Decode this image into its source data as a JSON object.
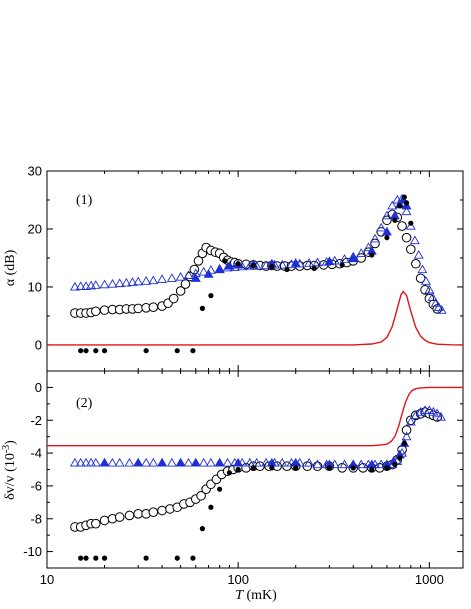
{
  "chart_data": {
    "type": "scatter",
    "xlabel_italic": "T",
    "xlabel_unit": " (mK)",
    "x_scale": "log",
    "xlim": [
      10,
      1500
    ],
    "x_ticks": [
      10,
      100,
      1000
    ],
    "x_tick_labels": [
      "10",
      "100",
      "1000"
    ],
    "colors": {
      "blue_symbols": "#1f2fd6",
      "black_symbols": "#000000",
      "model_line": "#e0141a",
      "axes": "#000000"
    },
    "panels": [
      {
        "panel_label": "(1)",
        "ylabel_greek": "α",
        "ylabel_unit": " (dB)",
        "ylim": [
          -4.5,
          30
        ],
        "y_ticks": [
          0,
          10,
          20,
          30
        ],
        "y_tick_labels": [
          "0",
          "10",
          "20",
          "30"
        ],
        "series": [
          {
            "marker": "open-circle",
            "x": [
              14,
              15,
              16,
              17,
              18,
              20,
              22,
              24,
              26,
              28,
              30,
              33,
              36,
              40,
              43,
              46,
              50,
              53,
              56,
              59,
              62,
              65,
              68,
              72,
              76,
              80,
              84,
              88,
              92,
              96,
              100,
              110,
              120,
              130,
              140,
              150,
              160,
              175,
              190,
              210,
              230,
              250,
              280,
              310,
              340,
              370,
              400,
              440,
              480,
              520,
              560,
              600,
              640,
              680,
              720,
              760,
              800,
              850,
              900,
              950,
              1000,
              1050,
              1100
            ],
            "y": [
              5.5,
              5.5,
              5.5,
              5.6,
              5.8,
              6.0,
              6.1,
              6.1,
              6.2,
              6.2,
              6.3,
              6.4,
              6.5,
              6.7,
              7.2,
              8.0,
              9.3,
              10.5,
              11.8,
              13.0,
              14.5,
              15.8,
              16.8,
              16.3,
              16.0,
              15.8,
              15.1,
              14.6,
              14.3,
              14.2,
              14.0,
              13.9,
              13.8,
              13.7,
              13.6,
              13.7,
              13.6,
              13.6,
              13.6,
              13.6,
              13.7,
              13.7,
              13.8,
              13.9,
              14.0,
              14.2,
              14.5,
              15.0,
              16.0,
              17.5,
              19.5,
              21.5,
              22.5,
              22.0,
              20.5,
              18.5,
              16.5,
              14.0,
              11.5,
              9.5,
              8.0,
              7.0,
              6.2
            ]
          },
          {
            "marker": "open-triangle-blue",
            "x": [
              14,
              15,
              16,
              17,
              18,
              20,
              22,
              24,
              26,
              28,
              30,
              33,
              36,
              40,
              45,
              50,
              55,
              60,
              66,
              72,
              80,
              88,
              96,
              105,
              115,
              125,
              140,
              155,
              170,
              190,
              210,
              235,
              260,
              290,
              320,
              360,
              400,
              440,
              480,
              520,
              560,
              600,
              640,
              680,
              720,
              740,
              760,
              800,
              840,
              880,
              920,
              960,
              1000,
              1040,
              1080,
              1120,
              1160
            ],
            "y": [
              10.0,
              10.1,
              10.1,
              10.2,
              10.3,
              10.4,
              10.5,
              10.6,
              10.7,
              10.8,
              10.9,
              11.0,
              11.1,
              11.3,
              11.5,
              11.7,
              12.0,
              12.3,
              12.6,
              12.9,
              13.1,
              13.3,
              13.4,
              13.5,
              13.6,
              13.6,
              13.7,
              13.8,
              13.8,
              13.9,
              14.0,
              14.1,
              14.2,
              14.3,
              14.5,
              14.8,
              15.2,
              15.8,
              16.8,
              18.3,
              20.2,
              22.3,
              24.0,
              25.0,
              25.2,
              24.5,
              23.0,
              20.5,
              18.0,
              15.5,
              13.0,
              11.0,
              9.5,
              8.2,
              7.2,
              6.5,
              6.0
            ]
          },
          {
            "marker": "filled-triangle-blue",
            "x": [
              60,
              70,
              80,
              90,
              100,
              120,
              150,
              200,
              300,
              400,
              500,
              600,
              660,
              700,
              730,
              760
            ],
            "y": [
              11.5,
              12.2,
              13.0,
              13.6,
              13.8,
              13.9,
              14.0,
              14.1,
              14.4,
              14.9,
              16.2,
              19.5,
              22.3,
              24.2,
              25.0,
              24.0
            ]
          },
          {
            "marker": "filled-circle",
            "x": [
              15,
              16,
              18,
              20,
              33,
              48,
              58,
              65,
              72,
              85,
              100,
              120,
              150,
              180,
              250,
              350,
              500,
              600,
              660,
              700,
              740,
              760,
              800
            ],
            "y": [
              -1.0,
              -1.0,
              -1.0,
              -1.0,
              -1.0,
              -1.0,
              -1.0,
              6.3,
              8.5,
              14.5,
              14.0,
              13.7,
              13.5,
              13.0,
              13.2,
              13.8,
              15.5,
              18.5,
              21.5,
              24.0,
              25.5,
              24.5,
              21.0
            ]
          }
        ],
        "model_line": {
          "x": [
            10,
            100,
            400,
            500,
            560,
            600,
            640,
            680,
            710,
            730,
            760,
            800,
            850,
            900,
            950,
            1000,
            1100,
            1300,
            1500
          ],
          "y": [
            0,
            0,
            0,
            0.15,
            0.5,
            1.3,
            3.2,
            6.3,
            8.6,
            9.2,
            8.5,
            5.8,
            3.0,
            1.5,
            0.8,
            0.4,
            0.12,
            0.02,
            0
          ]
        }
      },
      {
        "panel_label": "(2)",
        "ylabel_greek": "δv/v",
        "ylabel_unit": " (10",
        "ylabel_exponent": "-3",
        "ylabel_close": ")",
        "ylim": [
          -11,
          1
        ],
        "y_ticks": [
          0,
          -2,
          -4,
          -6,
          -8,
          -10
        ],
        "y_tick_labels": [
          "0",
          "-2",
          "-4",
          "-6",
          "-8",
          "-10"
        ],
        "series": [
          {
            "marker": "open-circle",
            "x": [
              14,
              15,
              16,
              17,
              18,
              20,
              22,
              24,
              27,
              30,
              33,
              36,
              40,
              44,
              48,
              52,
              56,
              60,
              64,
              68,
              72,
              77,
              82,
              88,
              94,
              100,
              110,
              120,
              130,
              145,
              160,
              180,
              200,
              230,
              260,
              300,
              350,
              400,
              450,
              500,
              550,
              600,
              640,
              680,
              720,
              760,
              800,
              850,
              900,
              950,
              1000,
              1050,
              1100
            ],
            "y": [
              -8.5,
              -8.5,
              -8.4,
              -8.3,
              -8.3,
              -8.1,
              -8.0,
              -7.9,
              -7.8,
              -7.7,
              -7.7,
              -7.6,
              -7.5,
              -7.4,
              -7.3,
              -7.1,
              -7.0,
              -6.8,
              -6.6,
              -6.2,
              -5.9,
              -5.6,
              -5.3,
              -5.1,
              -5.0,
              -4.9,
              -4.9,
              -4.8,
              -4.8,
              -4.8,
              -4.8,
              -4.8,
              -4.8,
              -4.8,
              -4.8,
              -4.8,
              -4.9,
              -4.9,
              -4.9,
              -4.9,
              -4.9,
              -4.8,
              -4.7,
              -4.4,
              -3.8,
              -2.6,
              -2.0,
              -1.7,
              -1.6,
              -1.5,
              -1.6,
              -1.7,
              -1.8
            ]
          },
          {
            "marker": "open-triangle-blue",
            "x": [
              14,
              15,
              16,
              17,
              18,
              20,
              22,
              24,
              27,
              30,
              33,
              36,
              40,
              45,
              50,
              55,
              60,
              66,
              72,
              80,
              88,
              96,
              105,
              115,
              125,
              140,
              155,
              170,
              190,
              210,
              235,
              260,
              290,
              320,
              360,
              400,
              440,
              480,
              520,
              560,
              600,
              640,
              680,
              720,
              760,
              800,
              850,
              900,
              950,
              1000,
              1050,
              1100,
              1150
            ],
            "y": [
              -4.6,
              -4.6,
              -4.6,
              -4.6,
              -4.6,
              -4.6,
              -4.6,
              -4.6,
              -4.6,
              -4.6,
              -4.6,
              -4.6,
              -4.6,
              -4.6,
              -4.6,
              -4.6,
              -4.6,
              -4.6,
              -4.6,
              -4.6,
              -4.6,
              -4.6,
              -4.6,
              -4.6,
              -4.6,
              -4.6,
              -4.6,
              -4.6,
              -4.6,
              -4.6,
              -4.6,
              -4.7,
              -4.7,
              -4.7,
              -4.7,
              -4.7,
              -4.7,
              -4.7,
              -4.7,
              -4.7,
              -4.7,
              -4.7,
              -4.5,
              -4.0,
              -3.0,
              -2.1,
              -1.7,
              -1.5,
              -1.4,
              -1.4,
              -1.5,
              -1.6,
              -1.8
            ]
          },
          {
            "marker": "filled-triangle-blue",
            "x": [
              20,
              30,
              40,
              50,
              60,
              80,
              100,
              150,
              200,
              300,
              400,
              500,
              600,
              650,
              700,
              740
            ],
            "y": [
              -4.6,
              -4.6,
              -4.6,
              -4.6,
              -4.6,
              -4.6,
              -4.6,
              -4.6,
              -4.6,
              -4.7,
              -4.7,
              -4.7,
              -4.7,
              -4.5,
              -4.1,
              -3.4
            ]
          },
          {
            "marker": "filled-circle",
            "x": [
              15,
              16,
              18,
              20,
              33,
              48,
              58,
              65,
              72,
              80,
              90,
              100,
              120,
              150,
              200,
              300,
              400,
              500,
              600,
              660,
              700,
              740
            ],
            "y": [
              -10.4,
              -10.4,
              -10.4,
              -10.4,
              -10.4,
              -10.4,
              -10.4,
              -8.6,
              -7.3,
              -6.2,
              -5.2,
              -5.0,
              -4.9,
              -4.9,
              -4.9,
              -4.9,
              -4.9,
              -5.0,
              -4.9,
              -4.7,
              -4.3,
              -3.4
            ]
          }
        ],
        "model_line": {
          "x": [
            10,
            100,
            500,
            560,
            600,
            630,
            660,
            690,
            720,
            750,
            780,
            810,
            850,
            900,
            1000,
            1200,
            1500
          ],
          "y": [
            -3.55,
            -3.55,
            -3.55,
            -3.5,
            -3.45,
            -3.3,
            -3.0,
            -2.4,
            -1.6,
            -0.9,
            -0.45,
            -0.2,
            -0.08,
            -0.03,
            0,
            0,
            0
          ]
        }
      }
    ]
  }
}
